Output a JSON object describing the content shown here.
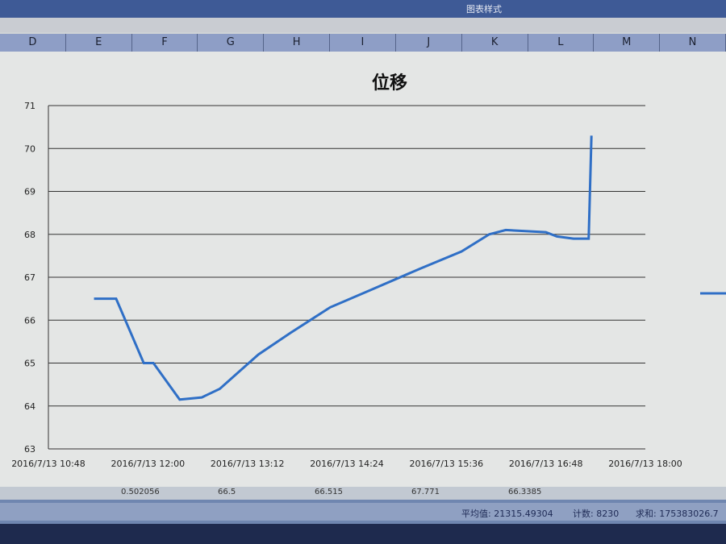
{
  "window": {
    "title": "图表样式"
  },
  "columns": [
    "D",
    "E",
    "F",
    "G",
    "H",
    "I",
    "J",
    "K",
    "L",
    "M",
    "N"
  ],
  "data_row": [
    "0.502056",
    "66.5",
    "66.515",
    "67.771",
    "66.3385"
  ],
  "status": {
    "average": "平均值: 21315.49304",
    "count": "计数: 8230",
    "sum": "求和: 175383026.7"
  },
  "colors": {
    "line": "#2f6fc6",
    "grid": "#333333",
    "background": "#e4e6e5"
  },
  "chart_data": {
    "type": "line",
    "title": "位移",
    "xlabel": "",
    "ylabel": "",
    "ylim": [
      63,
      71
    ],
    "yticks": [
      63,
      64,
      65,
      66,
      67,
      68,
      69,
      70,
      71
    ],
    "xticks": [
      "2016/7/13 10:48",
      "2016/7/13 12:00",
      "2016/7/13 13:12",
      "2016/7/13 14:24",
      "2016/7/13 15:36",
      "2016/7/13 16:48",
      "2016/7/13 18:00"
    ],
    "xlim": [
      "2016/7/13 10:48",
      "2016/7/13 18:00"
    ],
    "grid": true,
    "legend": "right",
    "x": [
      "11:21",
      "11:37",
      "11:57",
      "12:04",
      "12:23",
      "12:39",
      "12:52",
      "13:06",
      "13:20",
      "13:43",
      "14:12",
      "14:41",
      "15:17",
      "15:47",
      "16:07",
      "16:19",
      "16:48",
      "16:56",
      "17:08",
      "17:19",
      "17:21"
    ],
    "values": [
      66.5,
      66.5,
      65.0,
      65.0,
      64.15,
      64.2,
      64.4,
      64.8,
      65.2,
      65.7,
      66.3,
      66.7,
      67.2,
      67.6,
      68.0,
      68.1,
      68.05,
      67.95,
      67.9,
      67.9,
      70.3
    ]
  }
}
